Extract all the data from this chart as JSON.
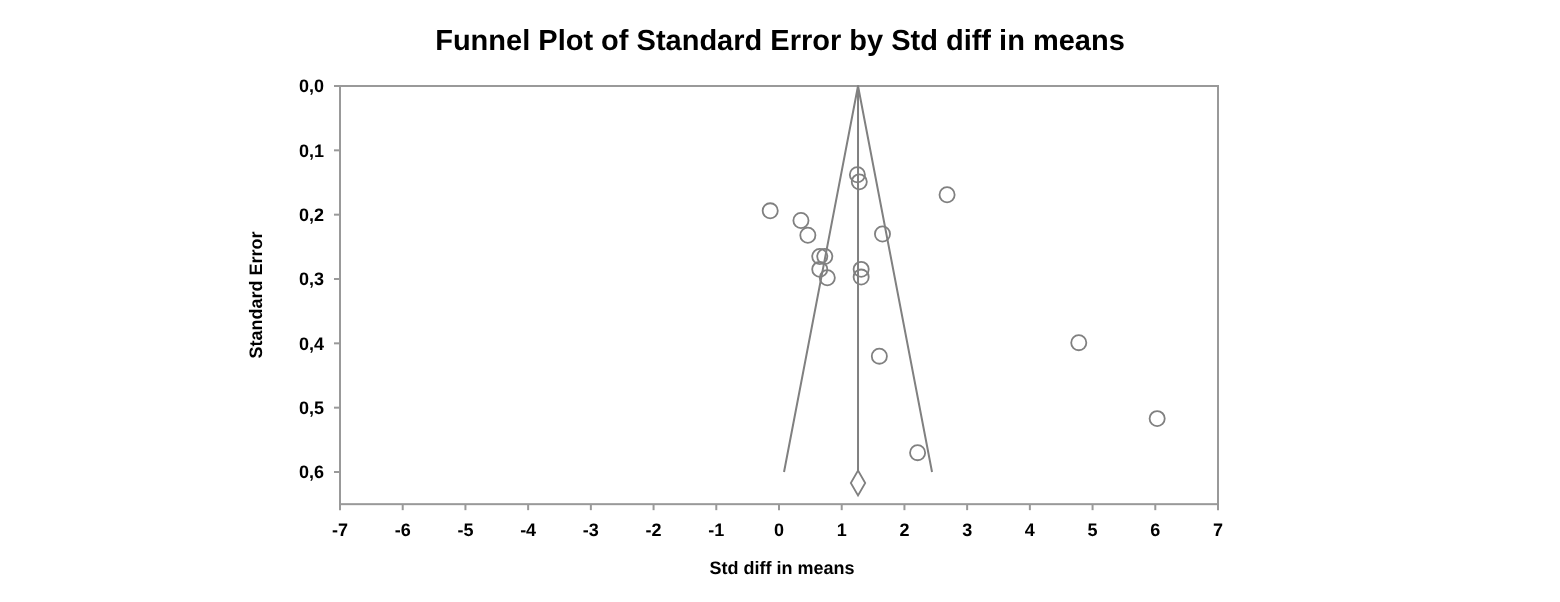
{
  "chart_data": {
    "type": "scatter",
    "title": "Funnel Plot of Standard Error by Std diff in means",
    "xlabel": "Std diff in means",
    "ylabel": "Standard Error",
    "xlim": [
      -7,
      7
    ],
    "xticks": [
      -7,
      -6,
      -5,
      -4,
      -3,
      -2,
      -1,
      0,
      1,
      2,
      3,
      4,
      5,
      6,
      7
    ],
    "ylim": [
      0.65,
      0
    ],
    "yticks": [
      {
        "value": 0,
        "label": "0,0"
      },
      {
        "value": 0.1,
        "label": "0,1"
      },
      {
        "value": 0.2,
        "label": "0,2"
      },
      {
        "value": 0.3,
        "label": "0,3"
      },
      {
        "value": 0.4,
        "label": "0,4"
      },
      {
        "value": 0.5,
        "label": "0,5"
      },
      {
        "value": 0.6,
        "label": "0,6"
      }
    ],
    "grid": false,
    "series": [
      {
        "type": "line",
        "color": "#808080",
        "x": [
          0.08,
          1.26,
          2.44
        ],
        "values": [
          0.6,
          0,
          0.6
        ]
      },
      {
        "type": "line",
        "color": "#808080",
        "x": [
          1.26,
          1.26
        ],
        "values": [
          0,
          0.6
        ]
      },
      {
        "type": "scatter",
        "color": "#808080",
        "marker": "circle",
        "x": [
          -0.14,
          0.35,
          0.46,
          0.65,
          0.73,
          0.65,
          0.77,
          1.25,
          1.28,
          1.65,
          2.68,
          1.31,
          1.31,
          1.6,
          2.21,
          4.78,
          6.03
        ],
        "values": [
          0.194,
          0.209,
          0.232,
          0.265,
          0.265,
          0.285,
          0.298,
          0.138,
          0.149,
          0.23,
          0.169,
          0.285,
          0.297,
          0.42,
          0.57,
          0.399,
          0.517
        ]
      },
      {
        "type": "scatter",
        "color": "#808080",
        "marker": "diamond",
        "x": [
          1.26
        ],
        "values": [
          0.617
        ]
      }
    ]
  }
}
